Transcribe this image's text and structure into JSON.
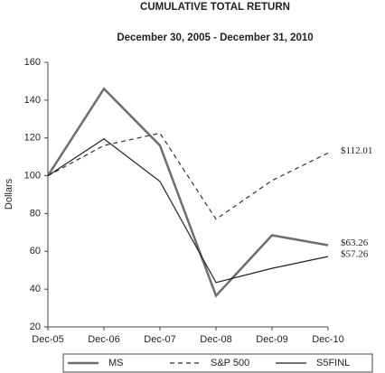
{
  "chart_data": {
    "type": "line",
    "title": "CUMULATIVE TOTAL RETURN",
    "subtitle": "December 30, 2005 - December 31, 2010",
    "y_label": "Dollars",
    "categories": [
      "Dec-05",
      "Dec-06",
      "Dec-07",
      "Dec-08",
      "Dec-09",
      "Dec-10"
    ],
    "series": [
      {
        "name": "MS",
        "color": "#6e6e6e",
        "style": "solid",
        "width": 2.5,
        "values": [
          100,
          146,
          116,
          36.5,
          68.5,
          63.26
        ],
        "value_labels": [
          null,
          null,
          null,
          null,
          null,
          "$63.26"
        ]
      },
      {
        "name": "S&P 500",
        "color": "#333333",
        "style": "dashed",
        "width": 1.2,
        "values": [
          100,
          116,
          122.5,
          77,
          97.5,
          112.01
        ],
        "value_labels": [
          null,
          null,
          null,
          null,
          null,
          "$112.01"
        ]
      },
      {
        "name": "S5FINL",
        "color": "#222222",
        "style": "solid",
        "width": 1.2,
        "values": [
          100,
          119.5,
          97,
          43.5,
          51,
          57.26
        ],
        "value_labels": [
          null,
          null,
          null,
          null,
          null,
          "$57.26"
        ]
      }
    ],
    "ylim": [
      20,
      160
    ],
    "yticks": [
      20,
      40,
      60,
      80,
      100,
      120,
      140,
      160
    ],
    "grid": false,
    "legend": "bottom"
  }
}
